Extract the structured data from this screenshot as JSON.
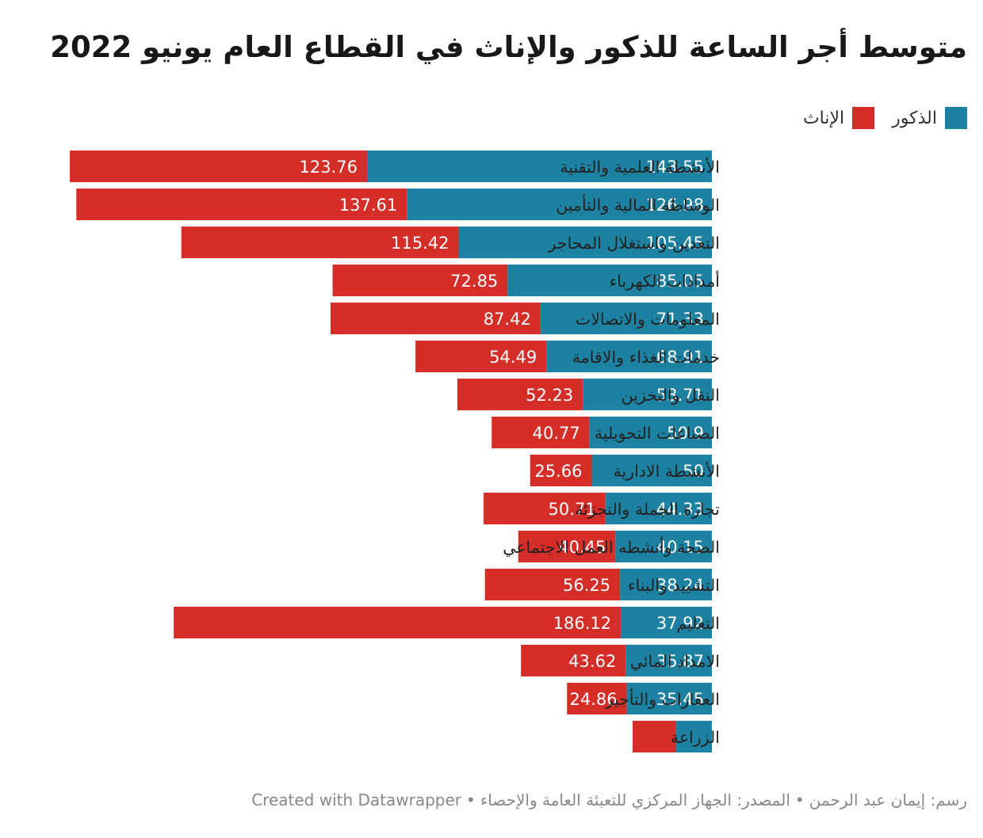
{
  "chart_data": {
    "type": "bar",
    "title": "متوسط أجر الساعة للذكور والإناث في القطاع العام يونيو 2022",
    "stacked": true,
    "orientation": "horizontal",
    "legend_position": "top-right",
    "categories": [
      "الأنشطة العلمية والتقنية",
      "الوساطة المالية والتأمين",
      "التعدين واستغلال المحاجر",
      "أمدادات الكهرباء",
      "المعلومات والاتصالات",
      "خدمات الغذاء والاقامة",
      "النقل والتخزين",
      "الصناعات التحويلية",
      "الأنشطة الادارية",
      "تجارة الجملة والتجزئة",
      "الصحة وأنشطه العمل الاجتماعي",
      "التشييد والبناء",
      "التعليم",
      "الامداد المائي",
      "العقارات والتأجير",
      "الزراعة"
    ],
    "series": [
      {
        "name": "الذكور",
        "color": "#1d81a2",
        "values": [
          143.55,
          126.98,
          105.45,
          85.05,
          71.33,
          68.91,
          53.71,
          50.9,
          50,
          44.33,
          40.15,
          38.24,
          37.92,
          35.87,
          35.45,
          15
        ],
        "labels": [
          "143.55",
          "126.98",
          "105.45",
          "85.05",
          "71.33",
          "68.91",
          "53.71",
          "50.9",
          "50",
          "44.33",
          "40.15",
          "38.24",
          "37.92",
          "35.87",
          "35.45",
          ""
        ]
      },
      {
        "name": "الإناث",
        "color": "#d52d28",
        "values": [
          123.76,
          137.61,
          115.42,
          72.85,
          87.42,
          54.49,
          52.23,
          40.77,
          25.66,
          50.71,
          40.45,
          56.25,
          186.12,
          43.62,
          24.86,
          18
        ],
        "labels": [
          "123.76",
          "137.61",
          "115.42",
          "72.85",
          "87.42",
          "54.49",
          "52.23",
          "40.77",
          "25.66",
          "50.71",
          "40.45",
          "56.25",
          "186.12",
          "43.62",
          "24.86",
          ""
        ]
      }
    ]
  },
  "footer": {
    "credit": "رسم: إيمان عبد الرحمن",
    "source": "المصدر: الجهاز المركزي للتعبئة العامة والإحصاء",
    "tool": "Created with Datawrapper",
    "separator": "•"
  }
}
